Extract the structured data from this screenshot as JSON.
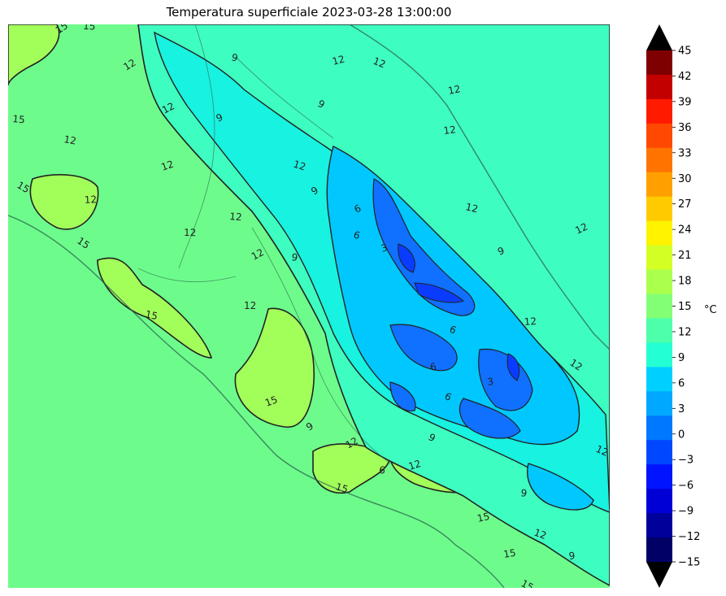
{
  "title": "Temperatura superficiale 2023-03-28 13:00:00",
  "colorbar": {
    "unit": "°C",
    "ticks": [
      "45",
      "42",
      "39",
      "36",
      "33",
      "30",
      "27",
      "24",
      "21",
      "18",
      "15",
      "12",
      "9",
      "6",
      "3",
      "0",
      "−3",
      "−6",
      "−9",
      "−12",
      "−15"
    ],
    "bands_top_to_bottom": [
      "#7f0000",
      "#c20000",
      "#ff1a00",
      "#ff4800",
      "#ff7400",
      "#ffa000",
      "#ffcb00",
      "#fff300",
      "#d3ff24",
      "#abff4d",
      "#82ff75",
      "#4dffaa",
      "#24ffd3",
      "#00d0ff",
      "#00a8ff",
      "#0078ff",
      "#0048ff",
      "#0014ff",
      "#0000d6",
      "#00009a",
      "#000066"
    ],
    "extend_colors": {
      "max": "#000000",
      "min": "#000000"
    }
  },
  "map": {
    "base_color": "#6dfc8c",
    "contour_labels": [
      "15",
      "15",
      "12",
      "15",
      "12",
      "12",
      "9",
      "9",
      "12",
      "12",
      "12",
      "12",
      "12",
      "9",
      "12",
      "15",
      "12",
      "15",
      "12",
      "9",
      "12",
      "12",
      "9",
      "6",
      "12",
      "9",
      "6",
      "3",
      "6",
      "6",
      "6",
      "3",
      "9",
      "12",
      "12",
      "12",
      "9",
      "6",
      "12",
      "9",
      "12",
      "15",
      "15",
      "15",
      "12",
      "12",
      "15",
      "12",
      "15",
      "15",
      "9"
    ]
  }
}
